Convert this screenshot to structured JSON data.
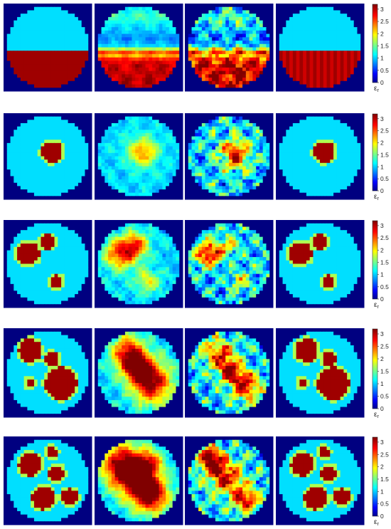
{
  "chart_data": {
    "type": "heatmap",
    "colormap": "jet",
    "colorbar_label": "ε",
    "colorbar_label_sub": "r",
    "clim": [
      0,
      3.2
    ],
    "colorbar_ticks": [
      "0",
      "0.5",
      "1",
      "1.5",
      "2",
      "2.5",
      "3"
    ],
    "background_value": 0,
    "circle_value": 1.1,
    "rows": [
      {
        "panels": [
          {
            "style": "sharp",
            "half": true,
            "inclusions": []
          },
          {
            "style": "smooth",
            "half": true,
            "noise": 0.05,
            "inclusions": []
          },
          {
            "style": "smooth",
            "half": true,
            "noise": 0.18,
            "inclusions": []
          },
          {
            "style": "sharp",
            "half": true,
            "stripes": true,
            "inclusions": []
          }
        ]
      },
      {
        "panels": [
          {
            "style": "sharp",
            "inclusions": [
              {
                "x": 0.55,
                "y": 0.45,
                "r": 0.12,
                "v": 3.1
              }
            ]
          },
          {
            "style": "smooth",
            "noise": 0.06,
            "inclusions": [
              {
                "x": 0.55,
                "y": 0.45,
                "r": 0.12,
                "v": 2.4
              }
            ]
          },
          {
            "style": "smooth",
            "noise": 0.2,
            "inclusions": [
              {
                "x": 0.57,
                "y": 0.47,
                "r": 0.12,
                "v": 2.9
              }
            ]
          },
          {
            "style": "sharp",
            "inclusions": [
              {
                "x": 0.55,
                "y": 0.45,
                "r": 0.12,
                "v": 3.1
              }
            ]
          }
        ]
      },
      {
        "panels": [
          {
            "style": "sharp",
            "inclusions": [
              {
                "x": 0.28,
                "y": 0.38,
                "r": 0.13,
                "v": 3.1
              },
              {
                "x": 0.5,
                "y": 0.25,
                "r": 0.08,
                "v": 3.1
              },
              {
                "x": 0.6,
                "y": 0.7,
                "r": 0.07,
                "v": 3.1
              }
            ]
          },
          {
            "style": "smooth",
            "noise": 0.08,
            "inclusions": [
              {
                "x": 0.3,
                "y": 0.38,
                "r": 0.13,
                "v": 2.8
              },
              {
                "x": 0.48,
                "y": 0.28,
                "r": 0.1,
                "v": 2.4
              },
              {
                "x": 0.6,
                "y": 0.7,
                "r": 0.1,
                "v": 2.0
              }
            ]
          },
          {
            "style": "smooth",
            "noise": 0.2,
            "inclusions": [
              {
                "x": 0.28,
                "y": 0.38,
                "r": 0.11,
                "v": 2.9
              },
              {
                "x": 0.5,
                "y": 0.28,
                "r": 0.08,
                "v": 2.0
              },
              {
                "x": 0.62,
                "y": 0.7,
                "r": 0.08,
                "v": 1.9
              }
            ]
          },
          {
            "style": "sharp",
            "inclusions": [
              {
                "x": 0.28,
                "y": 0.38,
                "r": 0.13,
                "v": 3.1
              },
              {
                "x": 0.5,
                "y": 0.25,
                "r": 0.08,
                "v": 3.1
              },
              {
                "x": 0.6,
                "y": 0.7,
                "r": 0.07,
                "v": 3.1
              }
            ]
          }
        ]
      },
      {
        "panels": [
          {
            "style": "sharp",
            "inclusions": [
              {
                "x": 0.3,
                "y": 0.25,
                "r": 0.13,
                "v": 3.1
              },
              {
                "x": 0.55,
                "y": 0.35,
                "r": 0.08,
                "v": 3.1
              },
              {
                "x": 0.65,
                "y": 0.62,
                "r": 0.18,
                "v": 3.1
              },
              {
                "x": 0.3,
                "y": 0.62,
                "r": 0.05,
                "v": 3.1
              }
            ]
          },
          {
            "style": "smooth",
            "noise": 0.08,
            "inclusions": [
              {
                "x": 0.38,
                "y": 0.28,
                "r": 0.14,
                "v": 2.9
              },
              {
                "x": 0.5,
                "y": 0.45,
                "r": 0.12,
                "v": 2.7
              },
              {
                "x": 0.65,
                "y": 0.62,
                "r": 0.17,
                "v": 3.0
              }
            ]
          },
          {
            "style": "smooth",
            "noise": 0.2,
            "inclusions": [
              {
                "x": 0.38,
                "y": 0.28,
                "r": 0.12,
                "v": 2.7
              },
              {
                "x": 0.52,
                "y": 0.48,
                "r": 0.1,
                "v": 2.8
              },
              {
                "x": 0.68,
                "y": 0.65,
                "r": 0.12,
                "v": 3.0
              }
            ]
          },
          {
            "style": "sharp",
            "inclusions": [
              {
                "x": 0.35,
                "y": 0.25,
                "r": 0.13,
                "v": 3.1
              },
              {
                "x": 0.6,
                "y": 0.35,
                "r": 0.08,
                "v": 3.1
              },
              {
                "x": 0.65,
                "y": 0.62,
                "r": 0.18,
                "v": 3.1
              },
              {
                "x": 0.3,
                "y": 0.62,
                "r": 0.05,
                "v": 3.1
              }
            ]
          }
        ]
      },
      {
        "panels": [
          {
            "style": "sharp",
            "inclusions": [
              {
                "x": 0.3,
                "y": 0.32,
                "r": 0.13,
                "v": 3.1
              },
              {
                "x": 0.55,
                "y": 0.18,
                "r": 0.06,
                "v": 3.1
              },
              {
                "x": 0.6,
                "y": 0.42,
                "r": 0.09,
                "v": 3.1
              },
              {
                "x": 0.45,
                "y": 0.7,
                "r": 0.13,
                "v": 3.1
              },
              {
                "x": 0.75,
                "y": 0.68,
                "r": 0.09,
                "v": 3.1
              }
            ]
          },
          {
            "style": "smooth",
            "noise": 0.08,
            "inclusions": [
              {
                "x": 0.32,
                "y": 0.32,
                "r": 0.17,
                "v": 3.1
              },
              {
                "x": 0.5,
                "y": 0.5,
                "r": 0.18,
                "v": 2.8
              },
              {
                "x": 0.65,
                "y": 0.68,
                "r": 0.14,
                "v": 2.9
              },
              {
                "x": 0.62,
                "y": 0.3,
                "r": 0.1,
                "v": 2.3
              }
            ]
          },
          {
            "style": "smooth",
            "noise": 0.2,
            "inclusions": [
              {
                "x": 0.35,
                "y": 0.35,
                "r": 0.12,
                "v": 2.6
              },
              {
                "x": 0.5,
                "y": 0.5,
                "r": 0.14,
                "v": 2.4
              },
              {
                "x": 0.7,
                "y": 0.72,
                "r": 0.1,
                "v": 2.9
              },
              {
                "x": 0.28,
                "y": 0.22,
                "r": 0.08,
                "v": 2.9
              }
            ]
          },
          {
            "style": "sharp",
            "inclusions": [
              {
                "x": 0.3,
                "y": 0.32,
                "r": 0.13,
                "v": 3.1
              },
              {
                "x": 0.55,
                "y": 0.18,
                "r": 0.06,
                "v": 3.1
              },
              {
                "x": 0.6,
                "y": 0.42,
                "r": 0.09,
                "v": 3.1
              },
              {
                "x": 0.45,
                "y": 0.7,
                "r": 0.13,
                "v": 3.1
              },
              {
                "x": 0.75,
                "y": 0.68,
                "r": 0.09,
                "v": 3.1
              }
            ]
          }
        ]
      }
    ]
  }
}
